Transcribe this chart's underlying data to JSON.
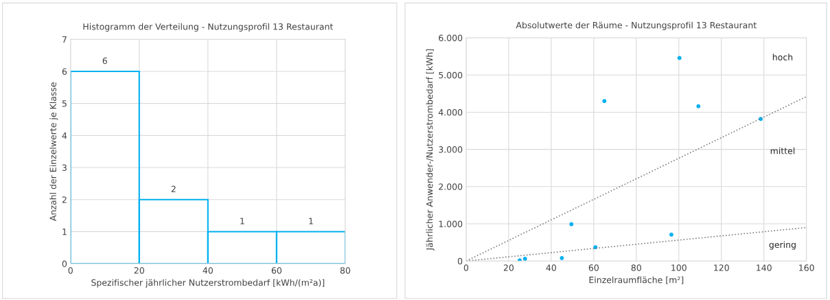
{
  "chart_data": [
    {
      "type": "histogram",
      "title": "Histogramm der Verteilung - Nutzungsprofil 13 Restaurant",
      "xlabel": "Spezifischer jährlicher Nutzerstrombedarf [kWh/(m²a)]",
      "ylabel": "Anzahl der Einzelwerte je Klasse",
      "bins": [
        0,
        20,
        40,
        60,
        80
      ],
      "values": [
        6,
        2,
        1,
        1
      ],
      "color": "#00b0f0",
      "data_labels": true,
      "xlim": [
        0,
        80
      ],
      "ylim": [
        0,
        7
      ],
      "xticks": [
        0,
        20,
        40,
        60,
        80
      ],
      "yticks": [
        0,
        1,
        2,
        3,
        4,
        5,
        6,
        7
      ],
      "grid": true
    },
    {
      "type": "scatter",
      "title": "Absolutwerte der Räume - Nutzungsprofil 13 Restaurant",
      "xlabel": "Einzelraumfläche [m²]",
      "ylabel": "Jährlicher Anwender-/Nutzerstrombedarf [kWh]",
      "series": [
        {
          "type": "scatter",
          "color": "#00b0f0",
          "marker": "circle",
          "x": [
            25.2,
            27.7,
            45,
            49.5,
            60.8,
            65,
            96.5,
            100.3,
            109.2,
            138.5
          ],
          "values": [
            20,
            60,
            80,
            990,
            370,
            4300,
            710,
            5460,
            4160,
            3820
          ]
        },
        {
          "type": "line",
          "color": "#808080",
          "line_style": "dotted",
          "x": [
            0,
            160
          ],
          "values": [
            0,
            4420
          ]
        },
        {
          "type": "line",
          "color": "#808080",
          "line_style": "dotted",
          "x": [
            0,
            160
          ],
          "values": [
            0,
            900
          ]
        }
      ],
      "annotations": [
        "hoch",
        "mittel",
        "gering"
      ],
      "xlim": [
        0,
        160
      ],
      "ylim": [
        0,
        6000
      ],
      "xticks": [
        0,
        20,
        40,
        60,
        80,
        100,
        120,
        140,
        160
      ],
      "yticks": [
        {
          "value": 0,
          "label": "0"
        },
        {
          "value": 1000,
          "label": "1.000"
        },
        {
          "value": 2000,
          "label": "2.000"
        },
        {
          "value": 3000,
          "label": "3.000"
        },
        {
          "value": 4000,
          "label": "4.000"
        },
        {
          "value": 5000,
          "label": "5.000"
        },
        {
          "value": 6000,
          "label": "6.000"
        }
      ],
      "grid": true
    }
  ]
}
